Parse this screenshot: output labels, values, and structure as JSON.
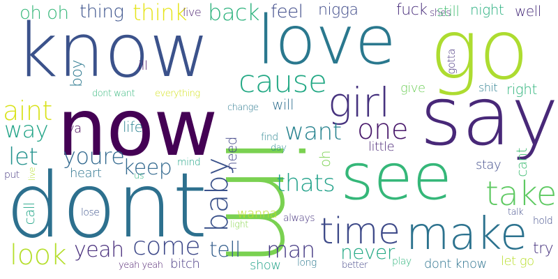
{
  "words": [
    {
      "text": "know",
      "color": "#3b528b"
    },
    {
      "text": "love",
      "color": "#2a788e"
    },
    {
      "text": "go",
      "color": "#addc30"
    },
    {
      "text": "now",
      "color": "#440154"
    },
    {
      "text": "say",
      "color": "#482878"
    },
    {
      "text": "dont",
      "color": "#2d708e"
    },
    {
      "text": "im",
      "color": "#7ad151"
    },
    {
      "text": "see",
      "color": "#35b779"
    },
    {
      "text": "make",
      "color": "#2c728e"
    },
    {
      "text": "time",
      "color": "#3e4a89"
    },
    {
      "text": "girl",
      "color": "#46327e"
    },
    {
      "text": "cause",
      "color": "#22a884"
    },
    {
      "text": "one",
      "color": "#48186a"
    },
    {
      "text": "baby",
      "color": "#3b528b"
    },
    {
      "text": "take",
      "color": "#5ec962"
    },
    {
      "text": "thats",
      "color": "#1fa088"
    },
    {
      "text": "want",
      "color": "#26828e"
    },
    {
      "text": "come",
      "color": "#3e4989"
    },
    {
      "text": "look",
      "color": "#b5de2b"
    },
    {
      "text": "yeah",
      "color": "#472d7b"
    },
    {
      "text": "man",
      "color": "#443983"
    },
    {
      "text": "tell",
      "color": "#355f8d"
    },
    {
      "text": "never",
      "color": "#22a884"
    },
    {
      "text": "youre",
      "color": "#31688e"
    },
    {
      "text": "keep",
      "color": "#31688e"
    },
    {
      "text": "aint",
      "color": "#d8e219"
    },
    {
      "text": "way",
      "color": "#20a386"
    },
    {
      "text": "let",
      "color": "#21918c"
    },
    {
      "text": "back",
      "color": "#2db27d"
    },
    {
      "text": "think",
      "color": "#e5e419"
    },
    {
      "text": "oh oh",
      "color": "#35b779"
    },
    {
      "text": "thing",
      "color": "#3b528b"
    },
    {
      "text": "live",
      "color": "#481b6d"
    },
    {
      "text": "feel",
      "color": "#3e4a89"
    },
    {
      "text": "nigga",
      "color": "#3e4a89"
    },
    {
      "text": "fuck",
      "color": "#472c7a"
    },
    {
      "text": "shes",
      "color": "#482576"
    },
    {
      "text": "still",
      "color": "#42be71"
    },
    {
      "text": "night",
      "color": "#29af7f"
    },
    {
      "text": "well",
      "color": "#472c7a"
    },
    {
      "text": "gotta",
      "color": "#46337e"
    },
    {
      "text": "boy",
      "color": "#2a778e"
    },
    {
      "text": "ill",
      "color": "#481467"
    },
    {
      "text": "dont want",
      "color": "#32b67a"
    },
    {
      "text": "everything",
      "color": "#d2e21b"
    },
    {
      "text": "give",
      "color": "#6ece58"
    },
    {
      "text": "shit",
      "color": "#287d8e"
    },
    {
      "text": "right",
      "color": "#2fb47c"
    },
    {
      "text": "change",
      "color": "#2a788e"
    },
    {
      "text": "will",
      "color": "#2e6e8e"
    },
    {
      "text": "ya",
      "color": "#440154"
    },
    {
      "text": "life",
      "color": "#277f8e"
    },
    {
      "text": "need",
      "color": "#414487"
    },
    {
      "text": "find",
      "color": "#26828e"
    },
    {
      "text": "day",
      "color": "#238a8d"
    },
    {
      "text": "little",
      "color": "#482475"
    },
    {
      "text": "oh",
      "color": "#7ad151"
    },
    {
      "text": "heart",
      "color": "#2c738e"
    },
    {
      "text": "us",
      "color": "#2db27d"
    },
    {
      "text": "mind",
      "color": "#20a486"
    },
    {
      "text": "put",
      "color": "#453781"
    },
    {
      "text": "stay",
      "color": "#3e4a89"
    },
    {
      "text": "cant",
      "color": "#3fbc73"
    },
    {
      "text": "wanna",
      "color": "#bddf26"
    },
    {
      "text": "light",
      "color": "#86d549"
    },
    {
      "text": "always",
      "color": "#46337e"
    },
    {
      "text": "call",
      "color": "#20a486"
    },
    {
      "text": "lose",
      "color": "#3b528b"
    },
    {
      "text": "show",
      "color": "#1fa187"
    },
    {
      "text": "long",
      "color": "#2a788e"
    },
    {
      "text": "better",
      "color": "#414487"
    },
    {
      "text": "play",
      "color": "#2fb47c"
    },
    {
      "text": "dont know",
      "color": "#2c728e"
    },
    {
      "text": "let go",
      "color": "#b8de29"
    },
    {
      "text": "try",
      "color": "#46327e"
    },
    {
      "text": "talk",
      "color": "#3e4a89"
    },
    {
      "text": "hold",
      "color": "#3e4a89"
    },
    {
      "text": "yeah yeah",
      "color": "#48186a"
    },
    {
      "text": "bitch",
      "color": "#453781"
    },
    {
      "text": "live",
      "color": "#b5de2b"
    }
  ]
}
